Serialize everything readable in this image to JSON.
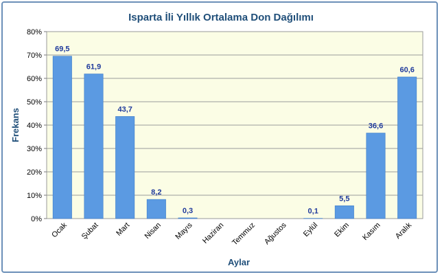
{
  "chart_data": {
    "type": "bar",
    "title": "Isparta İli Yıllık Ortalama Don Dağılımı",
    "xlabel": "Aylar",
    "ylabel": "Frekans",
    "categories": [
      "Ocak",
      "Şubat",
      "Mart",
      "Nisan",
      "Mayıs",
      "Haziran",
      "Temmuz",
      "Ağustos",
      "Eylül",
      "Ekim",
      "Kasım",
      "Aralık"
    ],
    "values": [
      69.5,
      61.9,
      43.7,
      8.2,
      0.3,
      0,
      0,
      0,
      0.1,
      5.5,
      36.6,
      60.6
    ],
    "data_labels": [
      "69,5",
      "61,9",
      "43,7",
      "8,2",
      "0,3",
      "",
      "",
      "",
      "0,1",
      "5,5",
      "36,6",
      "60,6"
    ],
    "ylim": [
      0,
      80
    ],
    "yticks": [
      "0%",
      "10%",
      "20%",
      "30%",
      "40%",
      "50%",
      "60%",
      "70%",
      "80%"
    ],
    "grid": true,
    "colors": {
      "bar": "#5b9ae2",
      "bar_edge": "#3d7cc9",
      "plot_bg": "#fbfde5",
      "grid": "#9a9a9a",
      "frame": "#6b8fb8",
      "title": "#1f4e79",
      "data_label": "#1f3a9c"
    }
  }
}
